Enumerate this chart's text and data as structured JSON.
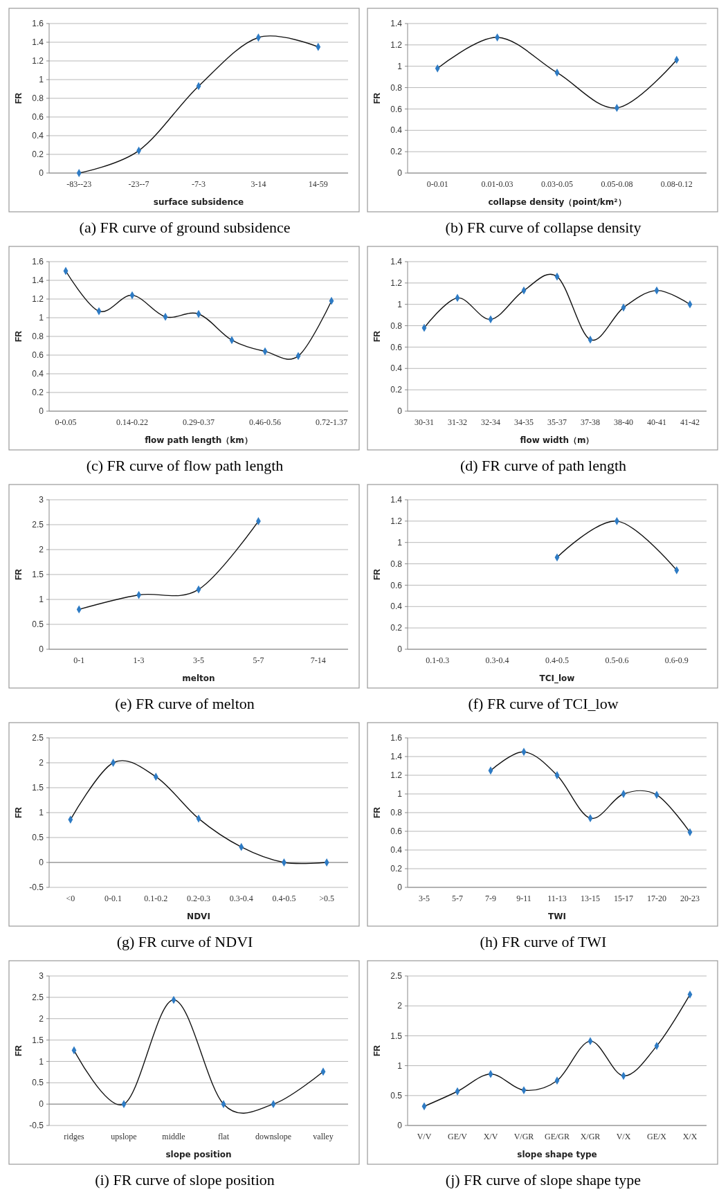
{
  "chart_data": [
    {
      "type": "line",
      "title": "(a) FR curve of ground subsidence",
      "xlabel": "surface subsidence",
      "ylabel": "FR",
      "categories": [
        "-83--23",
        "-23--7",
        "-7-3",
        "3-14",
        "14-59"
      ],
      "values": [
        0,
        0.24,
        0.93,
        1.45,
        1.35
      ],
      "color": "#2e7bc4",
      "ylim": [
        0,
        1.6
      ],
      "yticks": [
        0,
        0.2,
        0.4,
        0.6,
        0.8,
        1,
        1.2,
        1.4,
        1.6
      ],
      "grid": "y",
      "marker": "diamond"
    },
    {
      "type": "line",
      "title": "(b) FR curve of collapse density",
      "xlabel": "collapse density（point/km²）",
      "ylabel": "FR",
      "categories": [
        "0-0.01",
        "0.01-0.03",
        "0.03-0.05",
        "0.05-0.08",
        "0.08-0.12"
      ],
      "values": [
        0.98,
        1.27,
        0.94,
        0.61,
        1.06
      ],
      "color": "#2e7bc4",
      "ylim": [
        0,
        1.4
      ],
      "yticks": [
        0,
        0.2,
        0.4,
        0.6,
        0.8,
        1,
        1.2,
        1.4
      ],
      "grid": "y",
      "marker": "diamond"
    },
    {
      "type": "line",
      "title": "(c) FR curve of flow path length",
      "xlabel": "flow path length（km）",
      "ylabel": "FR",
      "categories": [
        "0-0.05",
        null,
        "0.14-0.22",
        null,
        "0.29-0.37",
        null,
        "0.46-0.56",
        null,
        "0.72-1.37"
      ],
      "values": [
        1.5,
        1.07,
        1.24,
        1.01,
        1.04,
        0.76,
        0.64,
        0.59,
        1.18
      ],
      "color": "#2e7bc4",
      "ylim": [
        0,
        1.6
      ],
      "yticks": [
        0,
        0.2,
        0.4,
        0.6,
        0.8,
        1,
        1.2,
        1.4,
        1.6
      ],
      "grid": "y",
      "marker": "diamond"
    },
    {
      "type": "line",
      "title": "(d) FR curve of path length",
      "xlabel": "flow width（m）",
      "ylabel": "FR",
      "categories": [
        "30-31",
        "31-32",
        "32-34",
        "34-35",
        "35-37",
        "37-38",
        "38-40",
        "40-41",
        "41-42"
      ],
      "values": [
        0.78,
        1.06,
        0.86,
        1.13,
        1.26,
        0.67,
        0.97,
        1.13,
        1.0
      ],
      "color": "#2e7bc4",
      "ylim": [
        0,
        1.4
      ],
      "yticks": [
        0,
        0.2,
        0.4,
        0.6,
        0.8,
        1,
        1.2,
        1.4
      ],
      "grid": "y",
      "marker": "diamond"
    },
    {
      "type": "line",
      "title": "(e) FR curve of melton",
      "xlabel": "melton",
      "ylabel": "FR",
      "categories": [
        "0-1",
        "1-3",
        "3-5",
        "5-7",
        "7-14"
      ],
      "values": [
        0.8,
        1.09,
        1.2,
        2.57,
        null
      ],
      "color": "#2e7bc4",
      "ylim": [
        0,
        3
      ],
      "yticks": [
        0,
        0.5,
        1,
        1.5,
        2,
        2.5,
        3
      ],
      "grid": "y",
      "marker": "diamond"
    },
    {
      "type": "line",
      "title": "(f) FR curve of TCI_low",
      "xlabel": "TCI_low",
      "ylabel": "FR",
      "categories": [
        "0.1-0.3",
        "0.3-0.4",
        "0.4-0.5",
        "0.5-0.6",
        "0.6-0.9"
      ],
      "values": [
        null,
        null,
        0.86,
        1.2,
        0.74
      ],
      "color": "#2e7bc4",
      "ylim": [
        0,
        1.4
      ],
      "yticks": [
        0,
        0.2,
        0.4,
        0.6,
        0.8,
        1,
        1.2,
        1.4
      ],
      "grid": "y",
      "marker": "diamond"
    },
    {
      "type": "line",
      "title": "(g) FR curve of NDVI",
      "xlabel": "NDVI",
      "ylabel": "FR",
      "categories": [
        "<0",
        "0-0.1",
        "0.1-0.2",
        "0.2-0.3",
        "0.3-0.4",
        "0.4-0.5",
        ">0.5"
      ],
      "values": [
        0.86,
        2.0,
        1.72,
        0.88,
        0.31,
        0,
        0
      ],
      "color": "#2e7bc4",
      "ylim": [
        -0.5,
        2.5
      ],
      "yticks": [
        -0.5,
        0,
        0.5,
        1,
        1.5,
        2,
        2.5
      ],
      "grid": "y",
      "marker": "diamond"
    },
    {
      "type": "line",
      "title": "(h) FR curve of TWI",
      "xlabel": "TWI",
      "ylabel": "FR",
      "categories": [
        "3-5",
        "5-7",
        "7-9",
        "9-11",
        "11-13",
        "13-15",
        "15-17",
        "17-20",
        "20-23"
      ],
      "values": [
        null,
        null,
        1.25,
        1.45,
        1.2,
        0.74,
        1.0,
        0.99,
        0.59
      ],
      "color": "#2e7bc4",
      "ylim": [
        0,
        1.6
      ],
      "yticks": [
        0,
        0.2,
        0.4,
        0.6,
        0.8,
        1,
        1.2,
        1.4,
        1.6
      ],
      "grid": "y",
      "marker": "diamond"
    },
    {
      "type": "line",
      "title": "(i) FR curve of slope position",
      "xlabel": "slope position",
      "ylabel": "FR",
      "categories": [
        "ridges",
        "upslope",
        "middle",
        "flat",
        "downslope",
        "valley"
      ],
      "values": [
        1.26,
        0,
        2.44,
        0,
        0,
        0.76
      ],
      "color": "#2e7bc4",
      "ylim": [
        -0.5,
        3
      ],
      "yticks": [
        -0.5,
        0,
        0.5,
        1,
        1.5,
        2,
        2.5,
        3
      ],
      "grid": "y",
      "marker": "diamond"
    },
    {
      "type": "line",
      "title": "(j) FR curve of slope shape type",
      "xlabel": "slope shape type",
      "ylabel": "FR",
      "categories": [
        "V/V",
        "GE/V",
        "X/V",
        "V/GR",
        "GE/GR",
        "X/GR",
        "V/X",
        "GE/X",
        "X/X"
      ],
      "values": [
        0.32,
        0.57,
        0.86,
        0.59,
        0.75,
        1.41,
        0.83,
        1.33,
        2.19
      ],
      "color": "#2e7bc4",
      "ylim": [
        0,
        2.5
      ],
      "yticks": [
        0,
        0.5,
        1,
        1.5,
        2,
        2.5
      ],
      "grid": "y",
      "marker": "diamond"
    }
  ]
}
